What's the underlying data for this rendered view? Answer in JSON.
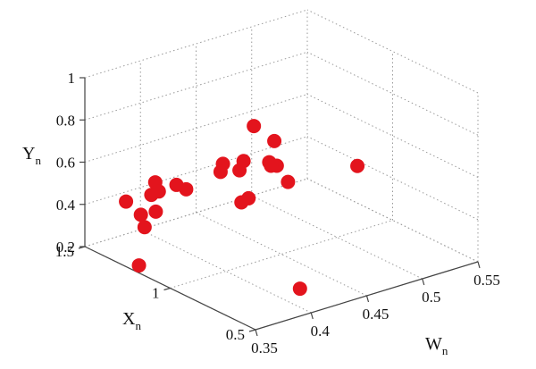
{
  "chart_data": {
    "type": "scatter",
    "style": "3d",
    "grid": true,
    "marker_color": "#e3141d",
    "x_axis": {
      "label": "X",
      "label_sub": "n",
      "lim": [
        0.5,
        1.5
      ],
      "ticks": [
        "0.5",
        "1",
        "1.5"
      ]
    },
    "w_axis": {
      "label": "W",
      "label_sub": "n",
      "lim": [
        0.35,
        0.55
      ],
      "ticks": [
        "0.35",
        "0.4",
        "0.45",
        "0.5",
        "0.55"
      ]
    },
    "y_axis": {
      "label": "Y",
      "label_sub": "n",
      "lim": [
        0.2,
        1.0
      ],
      "ticks": [
        "0.2",
        "0.4",
        "0.6",
        "0.8",
        "1"
      ]
    },
    "points": [
      {
        "w": 0.357,
        "x": 1.13,
        "y": 0.5
      },
      {
        "w": 0.364,
        "x": 1.35,
        "y": 0.45
      },
      {
        "w": 0.362,
        "x": 1.25,
        "y": 0.43
      },
      {
        "w": 0.378,
        "x": 1.27,
        "y": 0.55
      },
      {
        "w": 0.35,
        "x": 1.15,
        "y": 0.43
      },
      {
        "w": 0.392,
        "x": 1.18,
        "y": 0.53
      },
      {
        "w": 0.394,
        "x": 1.25,
        "y": 0.52
      },
      {
        "w": 0.422,
        "x": 1.16,
        "y": 0.61
      },
      {
        "w": 0.426,
        "x": 1.2,
        "y": 0.55
      },
      {
        "w": 0.376,
        "x": 1.28,
        "y": 0.49
      },
      {
        "w": 0.372,
        "x": 1.21,
        "y": 0.54
      },
      {
        "w": 0.439,
        "x": 1.15,
        "y": 0.6
      },
      {
        "w": 0.443,
        "x": 1.2,
        "y": 0.53
      },
      {
        "w": 0.459,
        "x": 1.13,
        "y": 0.57
      },
      {
        "w": 0.459,
        "x": 1.02,
        "y": 0.52
      },
      {
        "w": 0.434,
        "x": 1.13,
        "y": 0.42
      },
      {
        "w": 0.445,
        "x": 1.16,
        "y": 0.41
      },
      {
        "w": 0.452,
        "x": 1.04,
        "y": 0.6
      },
      {
        "w": 0.456,
        "x": 1.1,
        "y": 0.57
      },
      {
        "w": 0.482,
        "x": 1.37,
        "y": 0.61
      },
      {
        "w": 0.505,
        "x": 1.4,
        "y": 0.49
      },
      {
        "w": 0.549,
        "x": 1.2,
        "y": 0.38
      },
      {
        "w": 0.325,
        "x": 1.02,
        "y": 0.34
      },
      {
        "w": 0.39,
        "x": 0.5,
        "y": 0.33
      }
    ]
  }
}
